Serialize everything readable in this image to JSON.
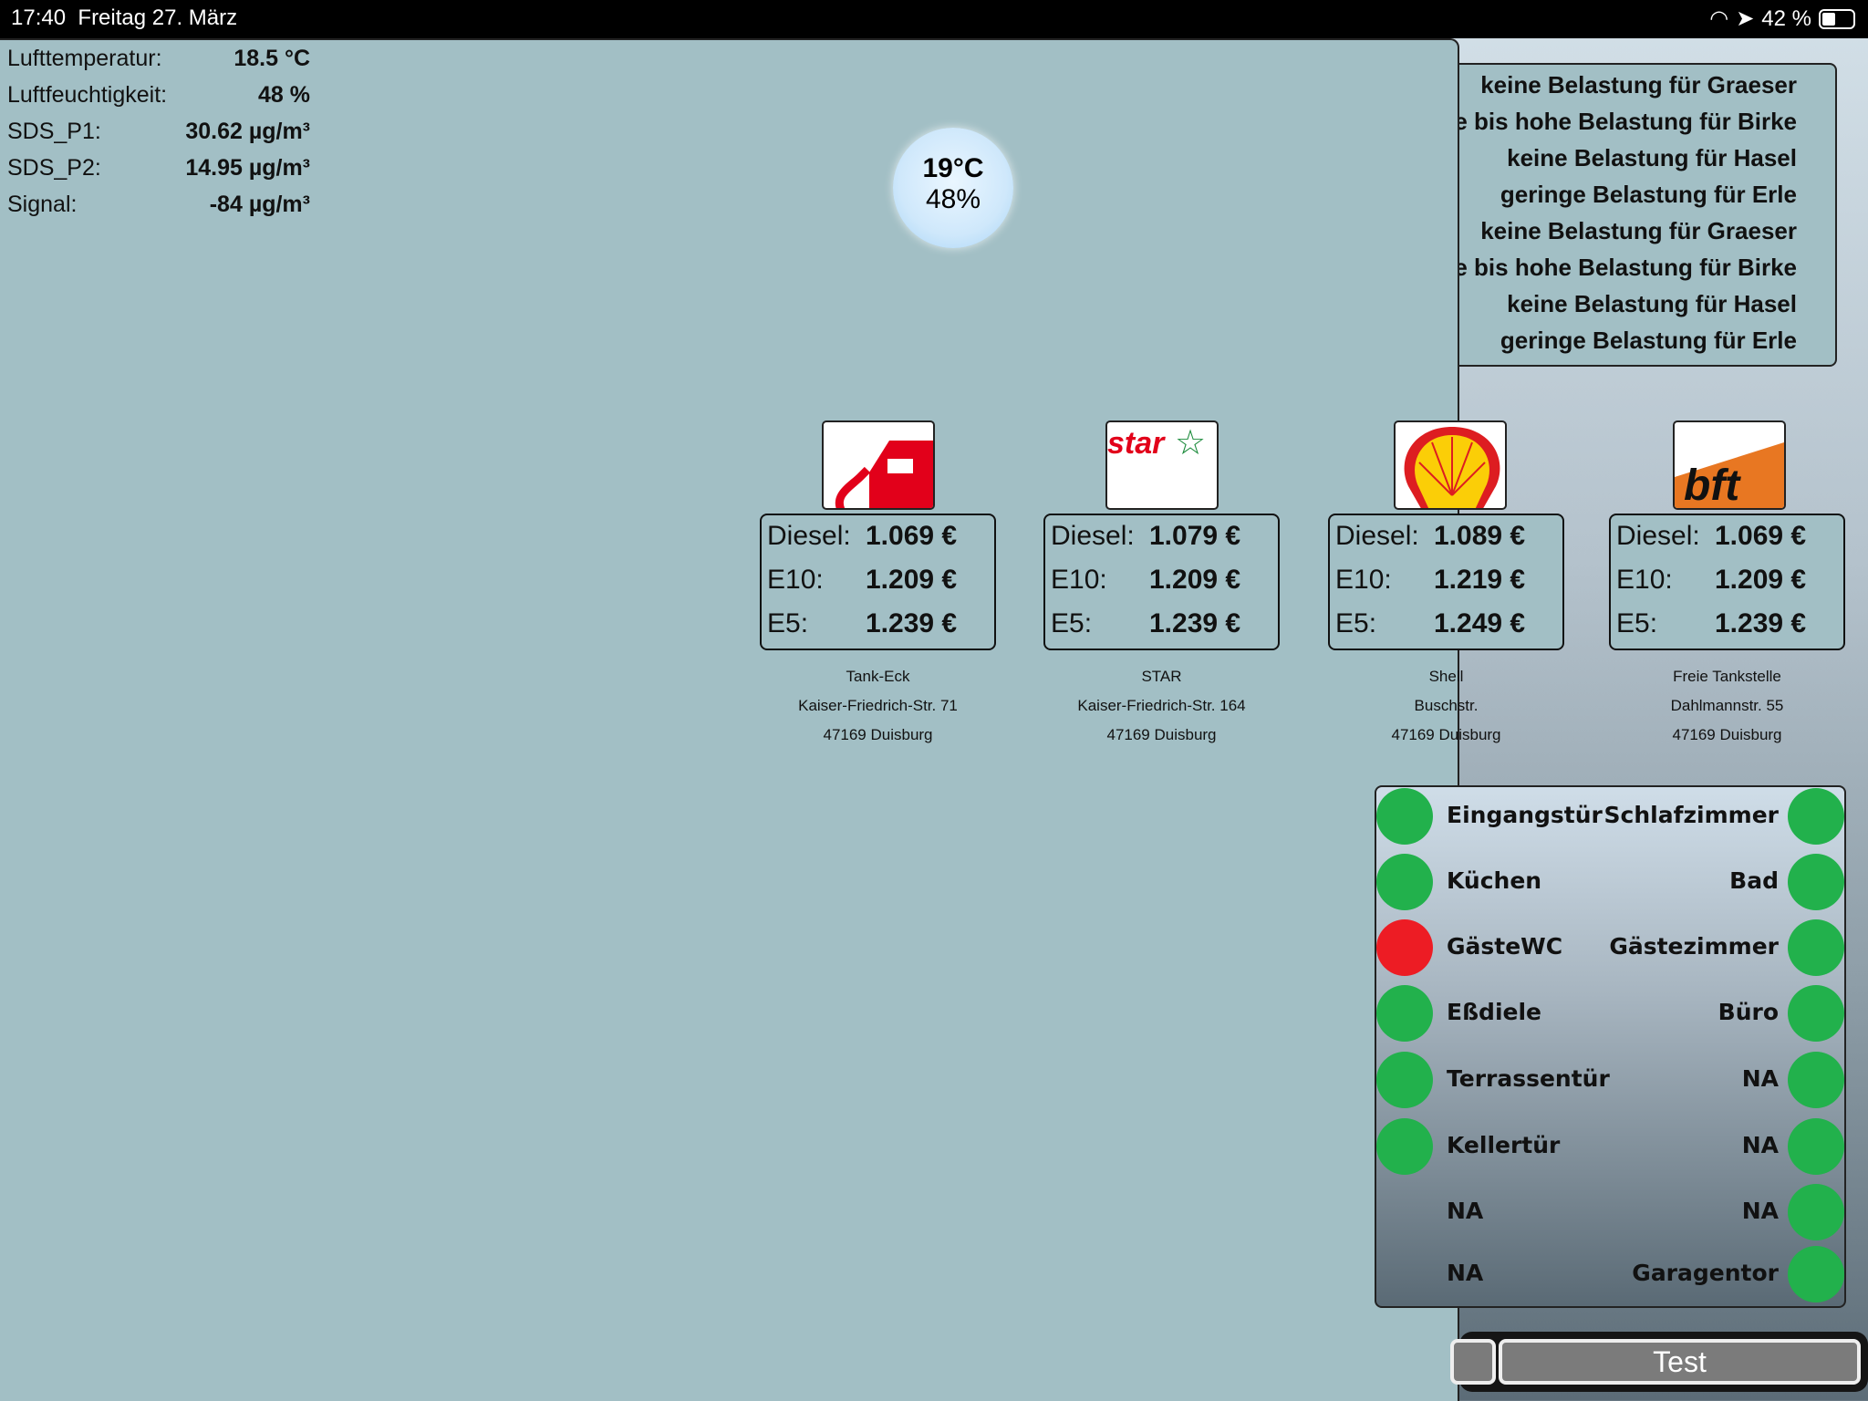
{
  "status_bar": {
    "time": "17:40",
    "date": "Freitag 27. März",
    "battery": "42 %",
    "battery_level": 0.42
  },
  "sensors": [
    {
      "label": "Lufttemperatur:",
      "value": "18.5 °C"
    },
    {
      "label": "Luftfeuchtigkeit:",
      "value": "48 %"
    },
    {
      "label": "SDS_P1:",
      "value": "30.62 µg/m³"
    },
    {
      "label": "SDS_P2:",
      "value": "14.95 µg/m³"
    },
    {
      "label": "Signal:",
      "value": "-84 µg/m³"
    }
  ],
  "bubble": {
    "temp": "19°C",
    "humidity": "48%"
  },
  "pollen": [
    "keine Belastung für Graeser",
    "mittlere bis hohe Belastung für Birke",
    "keine Belastung für Hasel",
    "geringe Belastung für Erle",
    "keine Belastung für Graeser",
    "mittlere bis hohe Belastung für Birke",
    "keine Belastung für Hasel",
    "geringe Belastung für Erle"
  ],
  "stations": [
    {
      "logo": "tank-eck",
      "diesel_label": "Diesel:",
      "diesel": "1.069 €",
      "e10_label": "E10:",
      "e10": "1.209 €",
      "e5_label": "E5:",
      "e5": "1.239 €",
      "name": "Tank-Eck",
      "street": "Kaiser-Friedrich-Str. 71",
      "city": "47169 Duisburg"
    },
    {
      "logo": "star",
      "logo_text": "star",
      "diesel_label": "Diesel:",
      "diesel": "1.079 €",
      "e10_label": "E10:",
      "e10": "1.209 €",
      "e5_label": "E5:",
      "e5": "1.239 €",
      "name": "STAR",
      "street": "Kaiser-Friedrich-Str. 164",
      "city": "47169 Duisburg"
    },
    {
      "logo": "shell",
      "diesel_label": "Diesel:",
      "diesel": "1.089 €",
      "e10_label": "E10:",
      "e10": "1.219 €",
      "e5_label": "E5:",
      "e5": "1.249 €",
      "name": "Shell",
      "street": "Buschstr.",
      "city": "47169 Duisburg"
    },
    {
      "logo": "bft",
      "logo_text": "bft",
      "diesel_label": "Diesel:",
      "diesel": "1.069 €",
      "e10_label": "E10:",
      "e10": "1.209 €",
      "e5_label": "E5:",
      "e5": "1.239 €",
      "name": "Freie Tankstelle",
      "street": "Dahlmannstr. 55",
      "city": "47169 Duisburg"
    }
  ],
  "doors": {
    "colors": {
      "closed": "#22b14c",
      "open": "#ed1c24",
      "unknown": "transparent"
    },
    "left": [
      {
        "label": "Eingangstür",
        "state": "closed"
      },
      {
        "label": "Küchen",
        "state": "closed"
      },
      {
        "label": "GästeWC",
        "state": "open"
      },
      {
        "label": "Eßdiele",
        "state": "closed"
      },
      {
        "label": "Terrassentür",
        "state": "closed"
      },
      {
        "label": "Kellertür",
        "state": "closed"
      },
      {
        "label": "NA",
        "state": "unknown"
      },
      {
        "label": "NA",
        "state": "unknown"
      }
    ],
    "right": [
      {
        "label": "Schlafzimmer",
        "state": "closed"
      },
      {
        "label": "Bad",
        "state": "closed"
      },
      {
        "label": "Gästezimmer",
        "state": "closed"
      },
      {
        "label": "Büro",
        "state": "closed"
      },
      {
        "label": "NA",
        "state": "closed"
      },
      {
        "label": "NA",
        "state": "closed"
      },
      {
        "label": "NA",
        "state": "closed"
      },
      {
        "label": "Garagentor",
        "state": "closed"
      }
    ]
  },
  "buttons": {
    "test": "Test"
  }
}
